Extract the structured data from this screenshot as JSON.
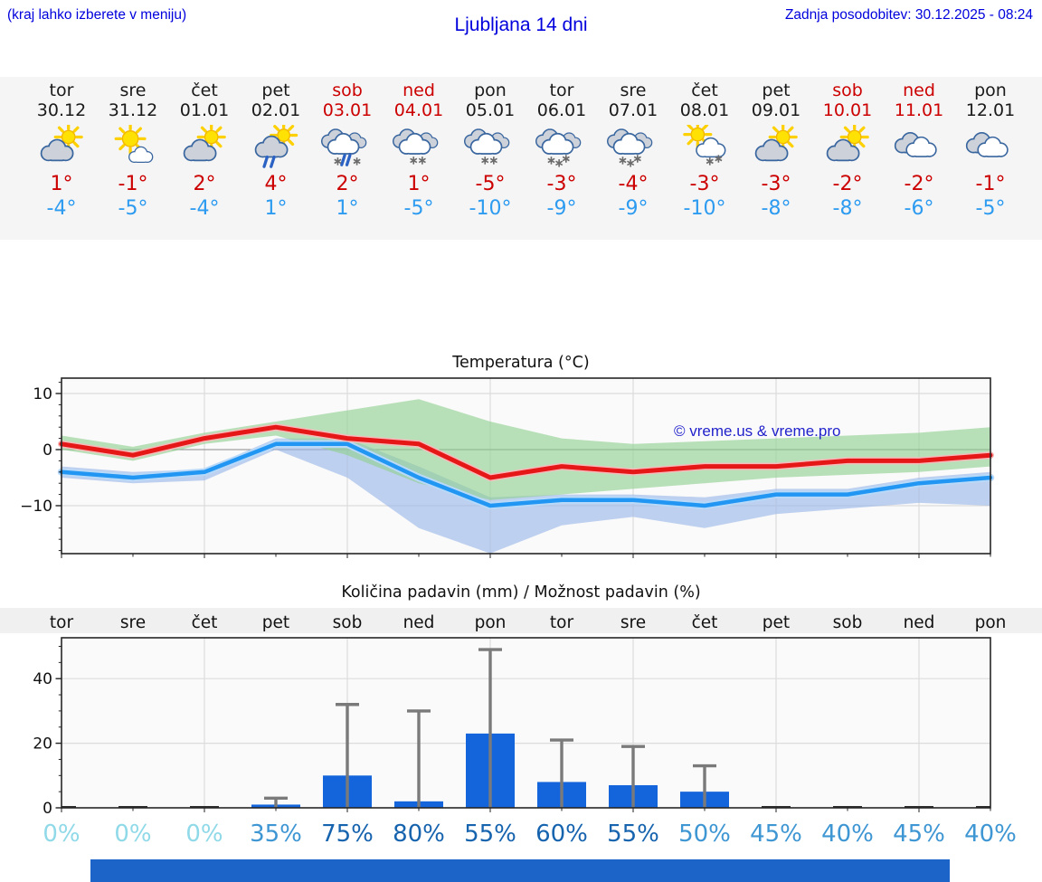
{
  "header": {
    "menu_hint": "(kraj lahko izberete v meniju)",
    "title": "Ljubljana 14 dni",
    "last_update": "Zadnja posodobitev: 30.12.2025 - 08:24"
  },
  "watermark": "© vreme.us & vreme.pro",
  "colors": {
    "link_blue": "#0000dd",
    "weekend_red": "#cc0000",
    "tmax_red": "#cc0000",
    "tmin_blue": "#2d9bf0",
    "line_max": "#e51717",
    "line_min": "#2196f3",
    "band_max": "#8fd08f",
    "band_min": "#9ab6e8",
    "bar_blue": "#1464dc",
    "whisker_gray": "#7a7a7a",
    "pop_zero": "#8fd9e8",
    "pop_mid": "#3e96d3",
    "pop_high": "#1663ae",
    "footer_bar": "#1c64c8"
  },
  "forecast_days": [
    {
      "day": "tor",
      "date": "30.12",
      "weekend": false,
      "icon": "sun-cloud",
      "tmax": "1°",
      "tmin": "-4°"
    },
    {
      "day": "sre",
      "date": "31.12",
      "weekend": false,
      "icon": "sun-small-cloud",
      "tmax": "-1°",
      "tmin": "-5°"
    },
    {
      "day": "čet",
      "date": "01.01",
      "weekend": false,
      "icon": "sun-cloud",
      "tmax": "2°",
      "tmin": "-4°"
    },
    {
      "day": "pet",
      "date": "02.01",
      "weekend": false,
      "icon": "sun-cloud-rain",
      "tmax": "4°",
      "tmin": "1°"
    },
    {
      "day": "sob",
      "date": "03.01",
      "weekend": true,
      "icon": "cloud-rain-snow",
      "tmax": "2°",
      "tmin": "1°"
    },
    {
      "day": "ned",
      "date": "04.01",
      "weekend": true,
      "icon": "cloud-snow-2",
      "tmax": "1°",
      "tmin": "-5°"
    },
    {
      "day": "pon",
      "date": "05.01",
      "weekend": false,
      "icon": "cloud-snow-2",
      "tmax": "-5°",
      "tmin": "-10°"
    },
    {
      "day": "tor",
      "date": "06.01",
      "weekend": false,
      "icon": "cloud-snow-3",
      "tmax": "-3°",
      "tmin": "-9°"
    },
    {
      "day": "sre",
      "date": "07.01",
      "weekend": false,
      "icon": "cloud-snow-3",
      "tmax": "-4°",
      "tmin": "-9°"
    },
    {
      "day": "čet",
      "date": "08.01",
      "weekend": false,
      "icon": "sun-cloud-snow",
      "tmax": "-3°",
      "tmin": "-10°"
    },
    {
      "day": "pet",
      "date": "09.01",
      "weekend": false,
      "icon": "sun-cloud",
      "tmax": "-3°",
      "tmin": "-8°"
    },
    {
      "day": "sob",
      "date": "10.01",
      "weekend": true,
      "icon": "sun-cloud",
      "tmax": "-2°",
      "tmin": "-8°"
    },
    {
      "day": "ned",
      "date": "11.01",
      "weekend": true,
      "icon": "cloudy",
      "tmax": "-2°",
      "tmin": "-6°"
    },
    {
      "day": "pon",
      "date": "12.01",
      "weekend": false,
      "icon": "cloudy",
      "tmax": "-1°",
      "tmin": "-5°"
    }
  ],
  "chart_data": [
    {
      "type": "line",
      "title": "Temperatura (°C)",
      "x_days": [
        "tor",
        "sre",
        "čet",
        "pet",
        "sob",
        "ned",
        "pon",
        "tor",
        "sre",
        "čet",
        "pet",
        "sob",
        "ned",
        "pon"
      ],
      "ylim": [
        -18.5,
        12.7
      ],
      "yticks": [
        10,
        0,
        -10
      ],
      "grid": true,
      "series": [
        {
          "name": "max-temp",
          "values": [
            1,
            -1,
            2,
            4,
            2,
            1,
            -5,
            -3,
            -4,
            -3,
            -3,
            -2,
            -2,
            -1
          ]
        },
        {
          "name": "min-temp",
          "values": [
            -4,
            -5,
            -4,
            1,
            1,
            -5,
            -10,
            -9,
            -9,
            -10,
            -8,
            -8,
            -6,
            -5
          ]
        }
      ],
      "bands": [
        {
          "name": "max-range",
          "upper": [
            2.5,
            0.5,
            3,
            5,
            7,
            9,
            5,
            2,
            1,
            1.5,
            2,
            2.5,
            3,
            4
          ],
          "lower": [
            0,
            -2,
            1,
            2.5,
            -1,
            -6,
            -9,
            -8,
            -7,
            -6,
            -5,
            -4.5,
            -4,
            -3
          ]
        },
        {
          "name": "min-range",
          "upper": [
            -3,
            -4,
            -3.5,
            2,
            2,
            -3,
            -8.5,
            -8,
            -8,
            -8.5,
            -7,
            -7,
            -5,
            -4
          ],
          "lower": [
            -5,
            -6,
            -5.5,
            0,
            -5,
            -14,
            -18.5,
            -13.5,
            -12,
            -14,
            -11.5,
            -10.5,
            -9.5,
            -10
          ]
        }
      ]
    },
    {
      "type": "bar",
      "title": "Količina padavin (mm) / Možnost padavin (%)",
      "categories": [
        "tor",
        "sre",
        "čet",
        "pet",
        "sob",
        "ned",
        "pon",
        "tor",
        "sre",
        "čet",
        "pet",
        "sob",
        "ned",
        "pon"
      ],
      "values": [
        0,
        0,
        0,
        1,
        10,
        2,
        23,
        8,
        7,
        5,
        0,
        0,
        0,
        0
      ],
      "whisker_max": [
        0,
        0,
        0,
        3,
        32,
        30,
        49,
        21,
        19,
        13,
        0,
        0,
        0,
        0
      ],
      "pop_percent": [
        0,
        0,
        0,
        35,
        75,
        80,
        55,
        60,
        55,
        50,
        45,
        40,
        45,
        40
      ],
      "yticks": [
        0,
        20,
        40
      ],
      "ylim": [
        0,
        52
      ],
      "grid": true
    }
  ]
}
